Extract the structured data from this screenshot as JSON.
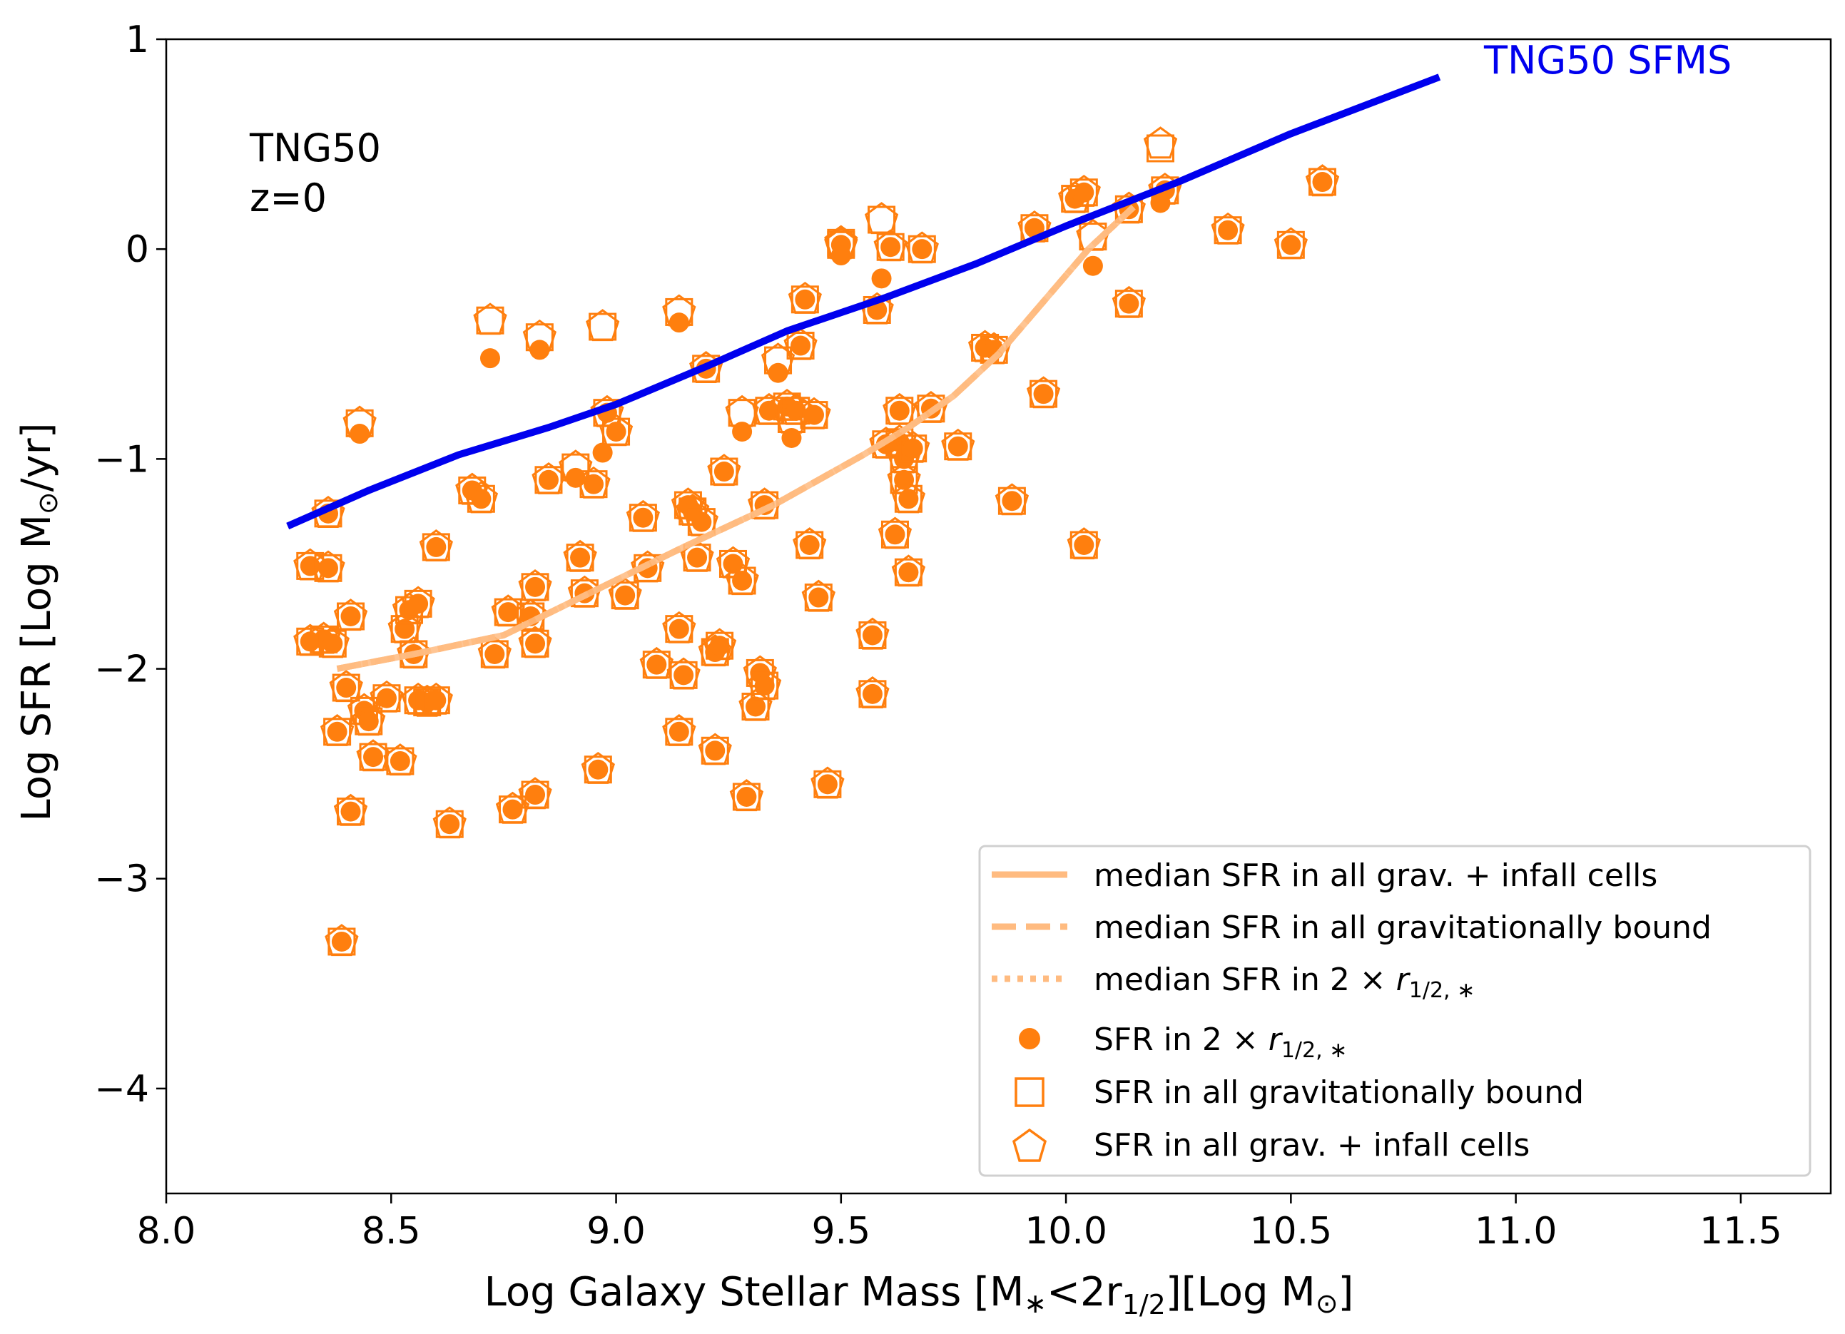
{
  "chart_data": {
    "type": "scatter",
    "xlabel_parts": [
      "Log Galaxy Stellar Mass [M",
      "∗",
      "<2r",
      "1/2",
      "][Log M",
      "⊙",
      "]"
    ],
    "ylabel_parts": [
      "Log SFR [Log M",
      "⊙",
      "/yr]"
    ],
    "xlim": [
      8.0,
      11.7
    ],
    "ylim": [
      -4.5,
      1.0
    ],
    "xticks": [
      8.0,
      8.5,
      9.0,
      9.5,
      10.0,
      10.5,
      11.0,
      11.5
    ],
    "xtick_labels": [
      "8.0",
      "8.5",
      "9.0",
      "9.5",
      "10.0",
      "10.5",
      "11.0",
      "11.5"
    ],
    "yticks": [
      1,
      0,
      -1,
      -2,
      -3,
      -4
    ],
    "ytick_labels": [
      "1",
      "0",
      "−1",
      "−2",
      "−3",
      "−4"
    ],
    "annotation_lines": [
      "TNG50",
      "z=0"
    ],
    "sfms_label": "TNG50 SFMS",
    "colors": {
      "points": "#ff7f0e",
      "median": "#ffbb80",
      "sfms": "#0000ee"
    },
    "legend": {
      "lines": [
        {
          "label": "median SFR in all grav. + infall cells",
          "style": "solid"
        },
        {
          "label": "median SFR in all gravitationally bound",
          "style": "dashed"
        },
        {
          "label_parts": [
            "median SFR in 2 × ",
            "r",
            "1/2, ∗"
          ],
          "style": "dotted"
        }
      ],
      "markers": [
        {
          "label_parts": [
            "SFR in 2 × ",
            "r",
            "1/2, ∗"
          ],
          "marker": "circle"
        },
        {
          "label": "SFR in all gravitationally bound",
          "marker": "square"
        },
        {
          "label": "SFR in all grav. + infall cells",
          "marker": "pentagon"
        }
      ]
    },
    "sfms": {
      "x": [
        8.27,
        8.45,
        8.65,
        8.85,
        9.0,
        9.2,
        9.38,
        9.6,
        9.8,
        10.0,
        10.25,
        10.5,
        10.83
      ],
      "y": [
        -1.32,
        -1.15,
        -0.98,
        -0.85,
        -0.74,
        -0.56,
        -0.39,
        -0.23,
        -0.07,
        0.11,
        0.32,
        0.55,
        0.82
      ]
    },
    "median": {
      "x": [
        8.38,
        8.55,
        8.75,
        8.95,
        9.15,
        9.35,
        9.55,
        9.65,
        9.75,
        9.85,
        9.95,
        10.05,
        10.15
      ],
      "y": [
        -2.0,
        -1.93,
        -1.84,
        -1.63,
        -1.42,
        -1.22,
        -0.98,
        -0.85,
        -0.7,
        -0.5,
        -0.25,
        0.0,
        0.2
      ]
    },
    "points": [
      {
        "x": 8.32,
        "y": -1.51
      },
      {
        "x": 8.36,
        "y": -1.52
      },
      {
        "x": 8.36,
        "y": -1.26
      },
      {
        "x": 8.32,
        "y": -1.87
      },
      {
        "x": 8.35,
        "y": -1.86
      },
      {
        "x": 8.37,
        "y": -1.88
      },
      {
        "x": 8.38,
        "y": -2.3
      },
      {
        "x": 8.4,
        "y": -2.09
      },
      {
        "x": 8.41,
        "y": -1.75
      },
      {
        "x": 8.41,
        "y": -2.68
      },
      {
        "x": 8.39,
        "y": -3.3
      },
      {
        "x": 8.44,
        "y": -2.2
      },
      {
        "x": 8.45,
        "y": -2.25
      },
      {
        "x": 8.46,
        "y": -2.42
      },
      {
        "x": 8.49,
        "y": -2.14
      },
      {
        "x": 8.52,
        "y": -2.44
      },
      {
        "x": 8.53,
        "y": -1.81
      },
      {
        "x": 8.54,
        "y": -1.72
      },
      {
        "x": 8.55,
        "y": -1.93
      },
      {
        "x": 8.56,
        "y": -1.69
      },
      {
        "x": 8.56,
        "y": -2.15
      },
      {
        "x": 8.58,
        "y": -2.16
      },
      {
        "x": 8.6,
        "y": -1.42
      },
      {
        "x": 8.6,
        "y": -2.15
      },
      {
        "x": 8.63,
        "y": -2.74
      },
      {
        "x": 8.68,
        "y": -1.15
      },
      {
        "x": 8.7,
        "y": -1.19
      },
      {
        "x": 8.73,
        "y": -1.93
      },
      {
        "x": 8.76,
        "y": -1.73
      },
      {
        "x": 8.77,
        "y": -2.67
      },
      {
        "x": 8.81,
        "y": -1.75
      },
      {
        "x": 8.82,
        "y": -1.61
      },
      {
        "x": 8.82,
        "y": -1.88
      },
      {
        "x": 8.82,
        "y": -2.6
      },
      {
        "x": 8.85,
        "y": -1.1
      },
      {
        "x": 8.92,
        "y": -1.47
      },
      {
        "x": 8.93,
        "y": -1.64
      },
      {
        "x": 8.95,
        "y": -1.12
      },
      {
        "x": 8.96,
        "y": -2.48
      },
      {
        "x": 8.98,
        "y": -0.78
      },
      {
        "x": 9.0,
        "y": -0.87
      },
      {
        "x": 9.02,
        "y": -1.65
      },
      {
        "x": 9.06,
        "y": -1.28
      },
      {
        "x": 9.07,
        "y": -1.52
      },
      {
        "x": 9.09,
        "y": -1.98
      },
      {
        "x": 9.14,
        "y": -1.81
      },
      {
        "x": 9.14,
        "y": -2.3
      },
      {
        "x": 9.15,
        "y": -2.03
      },
      {
        "x": 9.16,
        "y": -1.22
      },
      {
        "x": 9.17,
        "y": -1.25
      },
      {
        "x": 9.18,
        "y": -1.47
      },
      {
        "x": 9.19,
        "y": -1.3
      },
      {
        "x": 9.2,
        "y": -0.57
      },
      {
        "x": 9.22,
        "y": -1.92
      },
      {
        "x": 9.22,
        "y": -2.39
      },
      {
        "x": 9.23,
        "y": -1.89
      },
      {
        "x": 9.24,
        "y": -1.06
      },
      {
        "x": 9.26,
        "y": -1.5
      },
      {
        "x": 9.28,
        "y": -1.58
      },
      {
        "x": 9.29,
        "y": -2.61
      },
      {
        "x": 9.31,
        "y": -2.18
      },
      {
        "x": 9.32,
        "y": -2.02
      },
      {
        "x": 9.33,
        "y": -2.08
      },
      {
        "x": 9.33,
        "y": -1.22
      },
      {
        "x": 9.34,
        "y": -0.77
      },
      {
        "x": 9.38,
        "y": -0.75
      },
      {
        "x": 9.4,
        "y": -0.77
      },
      {
        "x": 9.41,
        "y": -0.46
      },
      {
        "x": 9.42,
        "y": -0.24
      },
      {
        "x": 9.43,
        "y": -1.41
      },
      {
        "x": 9.44,
        "y": -0.79
      },
      {
        "x": 9.45,
        "y": -1.66
      },
      {
        "x": 9.47,
        "y": -2.55
      },
      {
        "x": 9.5,
        "y": 0.02
      },
      {
        "x": 9.57,
        "y": -1.84
      },
      {
        "x": 9.57,
        "y": -2.12
      },
      {
        "x": 9.58,
        "y": -0.29
      },
      {
        "x": 9.6,
        "y": -0.93
      },
      {
        "x": 9.61,
        "y": 0.01
      },
      {
        "x": 9.62,
        "y": -1.36
      },
      {
        "x": 9.63,
        "y": -0.77
      },
      {
        "x": 9.63,
        "y": -0.92
      },
      {
        "x": 9.64,
        "y": -1.0
      },
      {
        "x": 9.64,
        "y": -1.1
      },
      {
        "x": 9.65,
        "y": -1.19
      },
      {
        "x": 9.65,
        "y": -1.54
      },
      {
        "x": 9.66,
        "y": -0.95
      },
      {
        "x": 9.68,
        "y": 0.0
      },
      {
        "x": 9.7,
        "y": -0.76
      },
      {
        "x": 9.76,
        "y": -0.94
      },
      {
        "x": 9.82,
        "y": -0.47
      },
      {
        "x": 9.84,
        "y": -0.48
      },
      {
        "x": 9.88,
        "y": -1.2
      },
      {
        "x": 9.93,
        "y": 0.1
      },
      {
        "x": 9.95,
        "y": -0.69
      },
      {
        "x": 10.02,
        "y": 0.24
      },
      {
        "x": 10.04,
        "y": 0.27
      },
      {
        "x": 10.04,
        "y": -1.41
      },
      {
        "x": 10.14,
        "y": 0.19
      },
      {
        "x": 10.14,
        "y": -0.26
      },
      {
        "x": 10.22,
        "y": 0.28
      },
      {
        "x": 10.36,
        "y": 0.09
      },
      {
        "x": 10.5,
        "y": 0.02
      },
      {
        "x": 10.57,
        "y": 0.32
      }
    ],
    "outliers": [
      {
        "x": 8.43,
        "yc": -0.88,
        "ys": -0.83,
        "yp": -0.83
      },
      {
        "x": 8.72,
        "yc": -0.52,
        "ys": -0.34,
        "yp": -0.34
      },
      {
        "x": 8.83,
        "yc": -0.48,
        "ys": -0.42,
        "yp": -0.42
      },
      {
        "x": 8.91,
        "yc": -1.09,
        "ys": -1.04,
        "yp": -1.04
      },
      {
        "x": 8.97,
        "yc": -0.97,
        "ys": -0.37,
        "yp": -0.37
      },
      {
        "x": 9.14,
        "yc": -0.35,
        "ys": -0.3,
        "yp": -0.3
      },
      {
        "x": 9.28,
        "yc": -0.87,
        "ys": -0.78,
        "yp": -0.78
      },
      {
        "x": 9.36,
        "yc": -0.59,
        "ys": -0.53,
        "yp": -0.53
      },
      {
        "x": 9.39,
        "yc": -0.9,
        "ys": -0.81,
        "yp": -0.81
      },
      {
        "x": 9.5,
        "yc": -0.03,
        "ys": 0.03,
        "yp": 0.03
      },
      {
        "x": 9.59,
        "yc": -0.14,
        "ys": 0.14,
        "yp": 0.14
      },
      {
        "x": 10.06,
        "yc": -0.08,
        "ys": 0.06,
        "yp": 0.06
      },
      {
        "x": 10.21,
        "yc": 0.22,
        "ys": 0.48,
        "yp": 0.5
      }
    ]
  }
}
